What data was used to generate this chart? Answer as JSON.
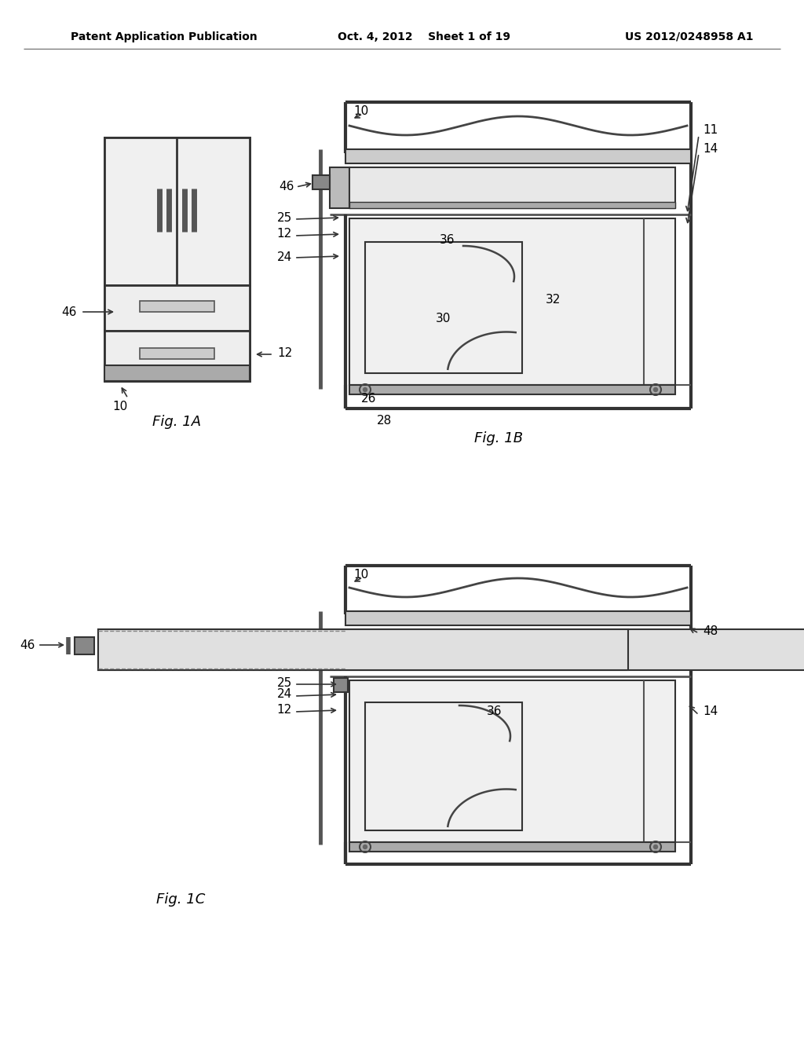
{
  "bg_color": "#ffffff",
  "title_left": "Patent Application Publication",
  "title_center": "Oct. 4, 2012    Sheet 1 of 19",
  "title_right": "US 2012/0248958 A1",
  "fig1a_label": "Fig. 1A",
  "fig1b_label": "Fig. 1B",
  "fig1c_label": "Fig. 1C",
  "line_color": "#444444",
  "dark_color": "#222222",
  "gray1": "#cccccc",
  "gray2": "#aaaaaa",
  "gray3": "#888888",
  "gray_fill": "#d8d8d8",
  "white": "#ffffff"
}
